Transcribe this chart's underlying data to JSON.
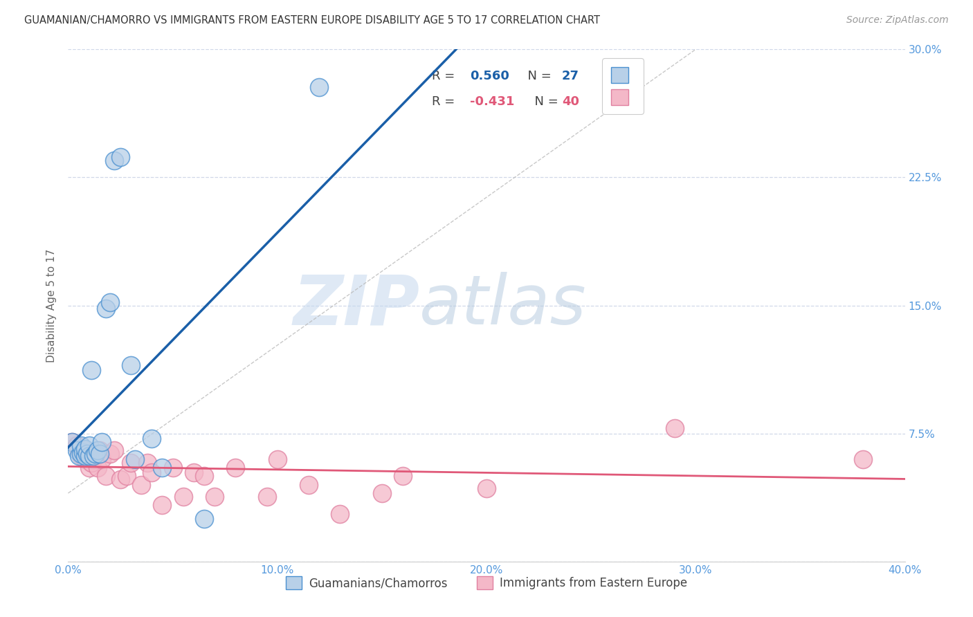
{
  "title": "GUAMANIAN/CHAMORRO VS IMMIGRANTS FROM EASTERN EUROPE DISABILITY AGE 5 TO 17 CORRELATION CHART",
  "source": "Source: ZipAtlas.com",
  "ylabel": "Disability Age 5 to 17",
  "legend_label_blue": "Guamanians/Chamorros",
  "legend_label_pink": "Immigrants from Eastern Europe",
  "r_blue": 0.56,
  "n_blue": 27,
  "r_pink": -0.431,
  "n_pink": 40,
  "blue_fill_color": "#b8d0e8",
  "blue_edge_color": "#4a90d0",
  "blue_line_color": "#1a5fa8",
  "pink_fill_color": "#f4b8c8",
  "pink_edge_color": "#e080a0",
  "pink_line_color": "#e05878",
  "xmin": 0.0,
  "xmax": 0.4,
  "ymin": 0.0,
  "ymax": 0.3,
  "yticks": [
    0.0,
    0.075,
    0.15,
    0.225,
    0.3
  ],
  "xticks": [
    0.0,
    0.1,
    0.2,
    0.3,
    0.4
  ],
  "blue_scatter_x": [
    0.002,
    0.004,
    0.005,
    0.006,
    0.006,
    0.007,
    0.008,
    0.008,
    0.009,
    0.01,
    0.01,
    0.011,
    0.012,
    0.013,
    0.014,
    0.015,
    0.016,
    0.018,
    0.02,
    0.022,
    0.025,
    0.03,
    0.032,
    0.04,
    0.045,
    0.065,
    0.12
  ],
  "blue_scatter_y": [
    0.07,
    0.065,
    0.062,
    0.063,
    0.068,
    0.064,
    0.062,
    0.066,
    0.063,
    0.062,
    0.068,
    0.112,
    0.062,
    0.063,
    0.065,
    0.063,
    0.07,
    0.148,
    0.152,
    0.235,
    0.237,
    0.115,
    0.06,
    0.072,
    0.055,
    0.025,
    0.278
  ],
  "pink_scatter_x": [
    0.002,
    0.004,
    0.005,
    0.006,
    0.007,
    0.008,
    0.008,
    0.009,
    0.01,
    0.011,
    0.012,
    0.013,
    0.014,
    0.015,
    0.016,
    0.018,
    0.02,
    0.022,
    0.025,
    0.028,
    0.03,
    0.035,
    0.038,
    0.04,
    0.045,
    0.05,
    0.055,
    0.06,
    0.065,
    0.07,
    0.08,
    0.095,
    0.1,
    0.115,
    0.13,
    0.15,
    0.16,
    0.2,
    0.29,
    0.38
  ],
  "pink_scatter_y": [
    0.07,
    0.068,
    0.065,
    0.062,
    0.063,
    0.06,
    0.065,
    0.062,
    0.055,
    0.058,
    0.06,
    0.062,
    0.055,
    0.065,
    0.06,
    0.05,
    0.063,
    0.065,
    0.048,
    0.05,
    0.058,
    0.045,
    0.058,
    0.052,
    0.033,
    0.055,
    0.038,
    0.052,
    0.05,
    0.038,
    0.055,
    0.038,
    0.06,
    0.045,
    0.028,
    0.04,
    0.05,
    0.043,
    0.078,
    0.06
  ],
  "watermark_zip": "ZIP",
  "watermark_atlas": "atlas",
  "background_color": "#ffffff",
  "grid_color": "#d0d8e8",
  "title_color": "#333333",
  "axis_tick_color": "#5599dd",
  "ref_line_color": "#bbbbbb"
}
